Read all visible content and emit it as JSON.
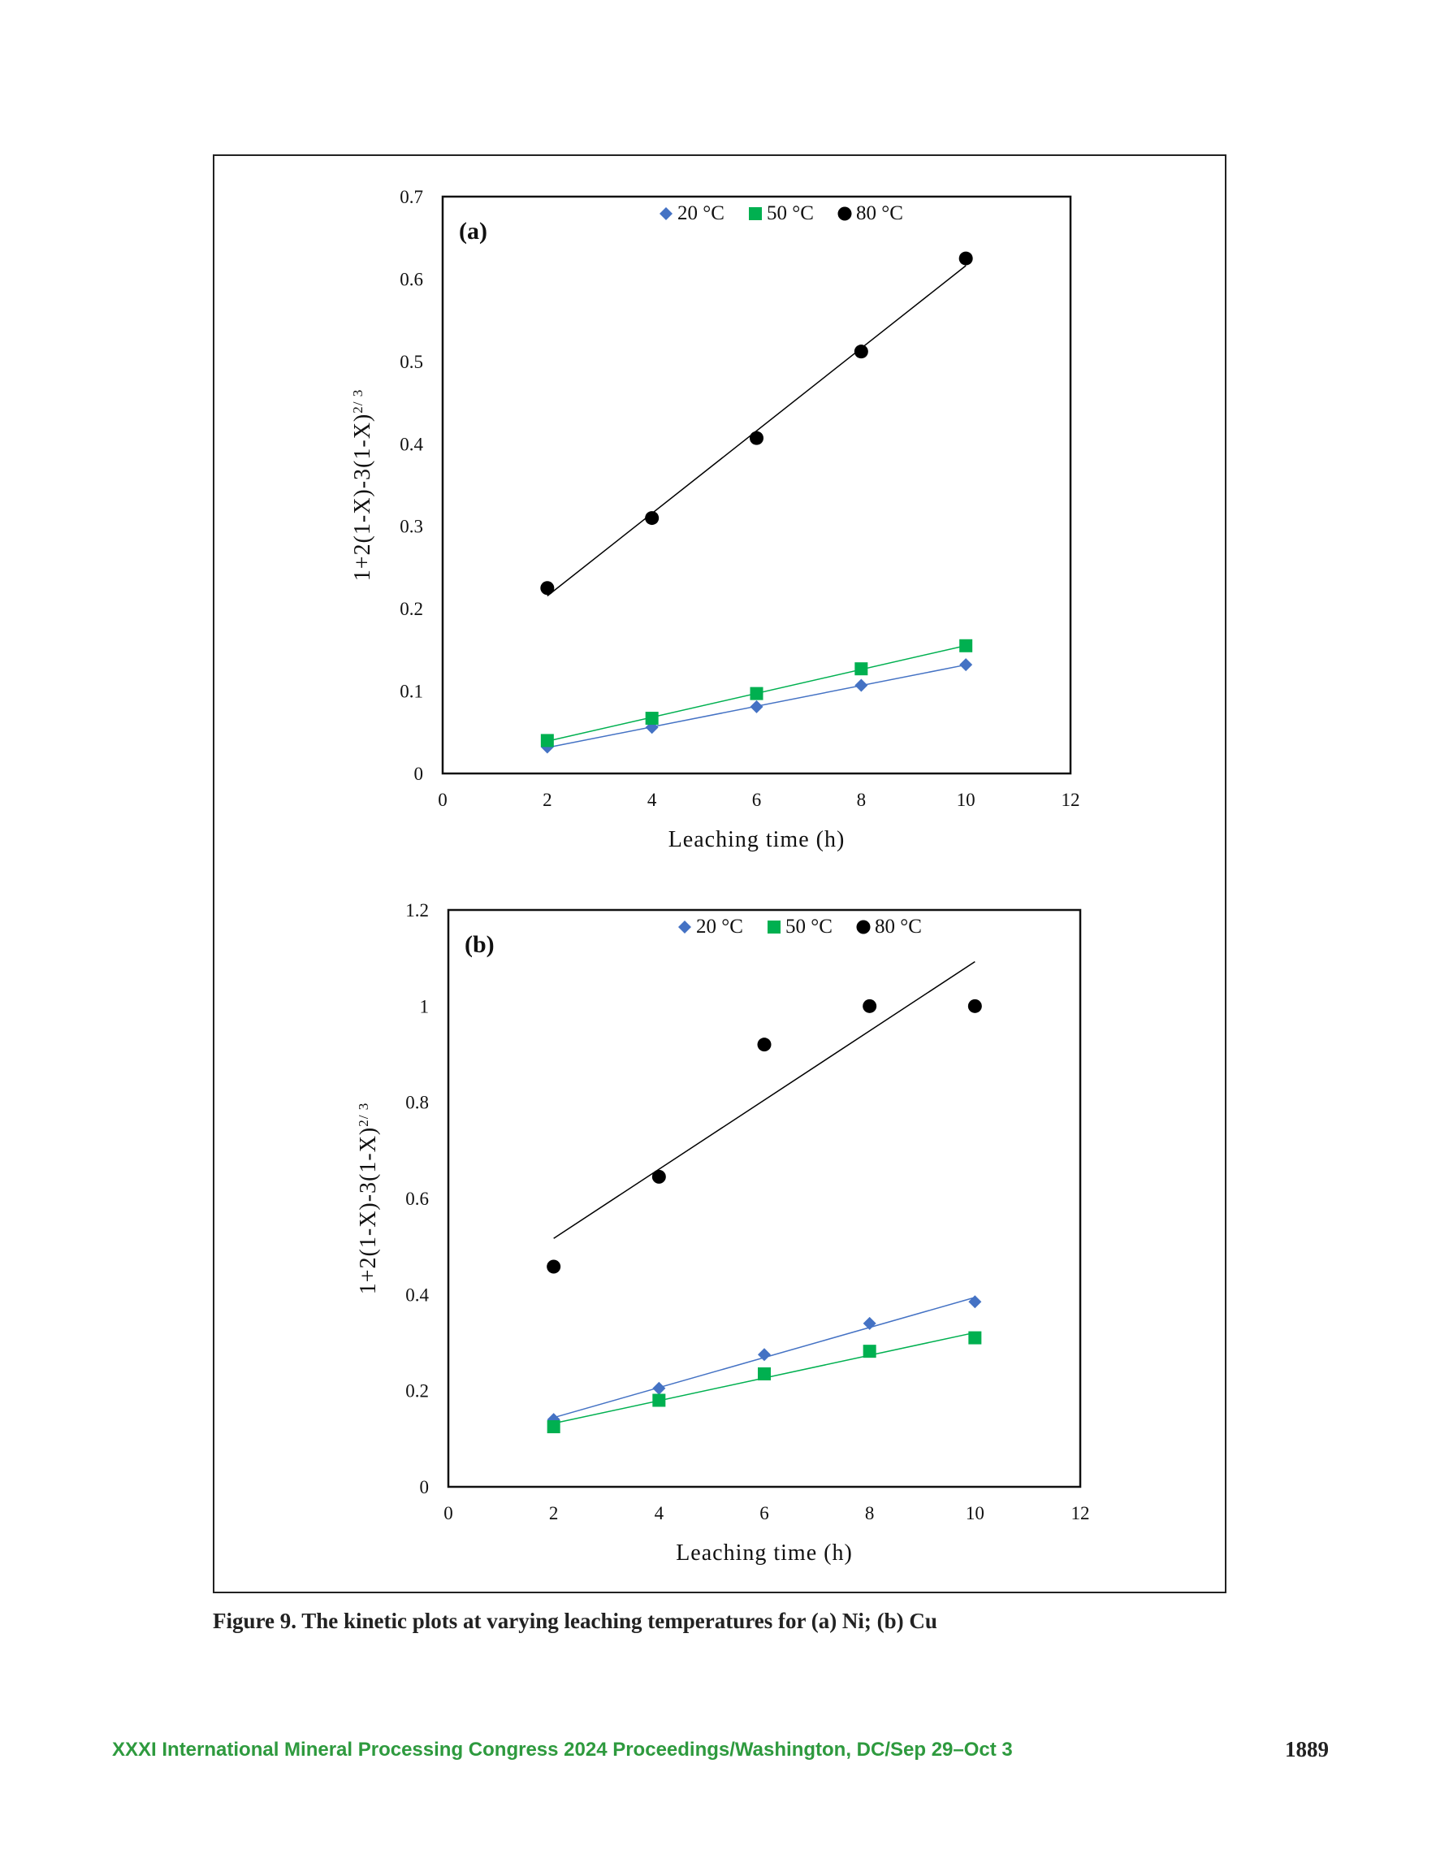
{
  "caption": "Figure 9. The kinetic plots at varying leaching temperatures for (a) Ni; (b) Cu",
  "footer": {
    "text": "XXXI International Mineral Processing Congress 2024 Proceedings/Washington, DC/Sep 29–Oct 3",
    "page_number": "1889",
    "color": "#2e9a3e"
  },
  "chart_data": [
    {
      "type": "scatter",
      "panel_label": "(a)",
      "xlabel": "Leaching time (h)",
      "ylabel": "1+2(1-X)-3(1-X)",
      "ylabel_superscript": "2/ 3",
      "xlim": [
        0,
        12
      ],
      "ylim": [
        0,
        0.7
      ],
      "x_ticks": [
        "0",
        "2",
        "4",
        "6",
        "8",
        "10",
        "12"
      ],
      "y_ticks": [
        "0",
        "0.1",
        "0.2",
        "0.3",
        "0.4",
        "0.5",
        "0.6",
        "0.7"
      ],
      "grid": false,
      "legend_position": "top-center",
      "trendlines": true,
      "series": [
        {
          "name": "20 °C",
          "marker": "diamond",
          "color": "#4472c4",
          "x": [
            2,
            4,
            6,
            8,
            10
          ],
          "y": [
            0.032,
            0.056,
            0.081,
            0.107,
            0.132
          ]
        },
        {
          "name": "50 °C",
          "marker": "square",
          "color": "#00b050",
          "x": [
            2,
            4,
            6,
            8,
            10
          ],
          "y": [
            0.04,
            0.067,
            0.097,
            0.127,
            0.155
          ]
        },
        {
          "name": "80 °C",
          "marker": "circle",
          "color": "#000000",
          "x": [
            2,
            4,
            6,
            8,
            10
          ],
          "y": [
            0.225,
            0.31,
            0.407,
            0.512,
            0.625
          ]
        }
      ]
    },
    {
      "type": "scatter",
      "panel_label": "(b)",
      "xlabel": "Leaching time (h)",
      "ylabel": "1+2(1-X)-3(1-X)",
      "ylabel_superscript": "2/ 3",
      "xlim": [
        0,
        12
      ],
      "ylim": [
        0,
        1.2
      ],
      "x_ticks": [
        "0",
        "2",
        "4",
        "6",
        "8",
        "10",
        "12"
      ],
      "y_ticks": [
        "0",
        "0.2",
        "0.4",
        "0.6",
        "0.8",
        "1",
        "1.2"
      ],
      "grid": false,
      "legend_position": "top-center",
      "trendlines": true,
      "series": [
        {
          "name": "20 °C",
          "marker": "diamond",
          "color": "#4472c4",
          "x": [
            2,
            4,
            6,
            8,
            10
          ],
          "y": [
            0.14,
            0.205,
            0.275,
            0.34,
            0.385
          ]
        },
        {
          "name": "50 °C",
          "marker": "square",
          "color": "#00b050",
          "x": [
            2,
            4,
            6,
            8,
            10
          ],
          "y": [
            0.125,
            0.18,
            0.235,
            0.282,
            0.31
          ]
        },
        {
          "name": "80 °C",
          "marker": "circle",
          "color": "#000000",
          "x": [
            2,
            4,
            6,
            8,
            10
          ],
          "y": [
            0.458,
            0.645,
            0.92,
            1.0,
            1.0
          ]
        }
      ]
    }
  ]
}
